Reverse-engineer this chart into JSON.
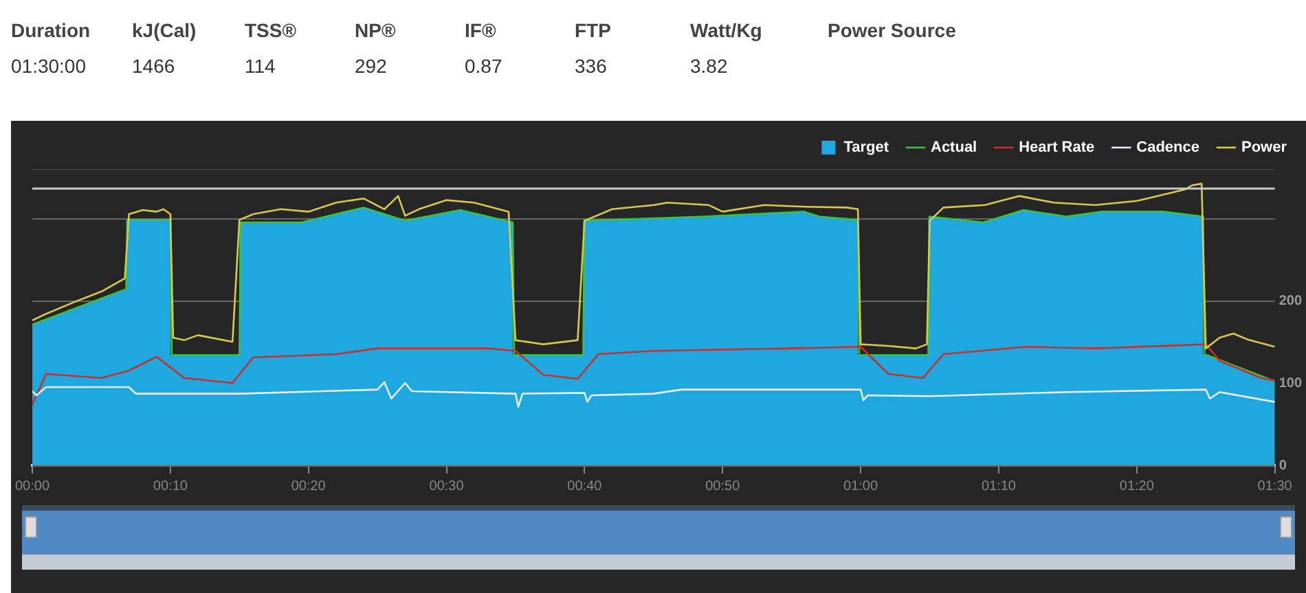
{
  "chart_data": {
    "type": "area",
    "annotations": [
      "Duration",
      "01:30:00",
      "kJ(Cal)",
      "1466",
      "TSS®",
      "114",
      "NP®",
      "292",
      "IF®",
      "0.87",
      "FTP",
      "336",
      "Watt/Kg",
      "3.82",
      "Power Source"
    ],
    "series": [
      {
        "name": "Target",
        "type": "area",
        "color": "#1fa8e0",
        "x": [
          0,
          6.8,
          6.8,
          10,
          10,
          15,
          15,
          19.5,
          24,
          27,
          31,
          34.8,
          34.8,
          39.9,
          39.9,
          48.6,
          55.9,
          57,
          59.8,
          59.8,
          64.9,
          64.9,
          68.9,
          71.8,
          74.9,
          77.5,
          81.9,
          84.8,
          84.8,
          90
        ],
        "values": [
          171,
          214,
          298,
          298,
          134,
          134,
          295,
          295,
          313,
          297,
          310,
          295,
          134,
          134,
          297,
          302,
          308,
          302,
          298,
          134,
          134,
          302,
          295,
          310,
          302,
          308,
          308,
          302,
          135,
          102
        ]
      },
      {
        "name": "Actual",
        "type": "line",
        "color": "#3fbf3f",
        "x": [
          0,
          6.8,
          6.9,
          10,
          10.1,
          15,
          15.1,
          19.5,
          24,
          27,
          31,
          34.8,
          34.9,
          39.9,
          40,
          48.6,
          55.9,
          57,
          59.8,
          59.9,
          64.9,
          65,
          68.9,
          71.8,
          74.9,
          77.5,
          81.9,
          84.8,
          84.9,
          90
        ],
        "values": [
          171,
          214,
          298,
          298,
          134,
          134,
          295,
          295,
          313,
          297,
          310,
          295,
          134,
          134,
          297,
          302,
          308,
          302,
          298,
          134,
          134,
          302,
          295,
          310,
          302,
          308,
          308,
          302,
          135,
          102
        ]
      },
      {
        "name": "Heart Rate",
        "type": "line",
        "color": "#c8302c",
        "x": [
          0,
          1,
          5,
          7,
          9,
          11,
          14.5,
          16,
          22,
          25,
          33,
          35,
          37,
          39.5,
          41,
          45,
          55,
          60,
          62,
          64.5,
          66,
          72,
          77,
          85,
          86,
          89,
          90
        ],
        "values": [
          74,
          111,
          106,
          115,
          132,
          106,
          100,
          131,
          135,
          142,
          142,
          139,
          110,
          105,
          135,
          139,
          142,
          144,
          111,
          106,
          135,
          144,
          142,
          147,
          127,
          106,
          103
        ]
      },
      {
        "name": "Cadence",
        "type": "line",
        "color": "#e8eef2",
        "x": [
          0,
          0.3,
          1,
          7,
          7.5,
          15,
          25,
          25.5,
          26,
          27,
          27.5,
          35,
          35.2,
          35.5,
          40,
          40.2,
          40.5,
          45,
          47,
          60,
          60.2,
          60.5,
          65,
          75,
          85,
          85.3,
          86,
          90
        ],
        "values": [
          90,
          85,
          95,
          95,
          87,
          87,
          92,
          101,
          81,
          100,
          90,
          87,
          71,
          87,
          88,
          77,
          85,
          87,
          92,
          92,
          79,
          85,
          84,
          89,
          92,
          81,
          89,
          77
        ]
      },
      {
        "name": "Power",
        "type": "line",
        "color": "#d9c94a",
        "x": [
          0,
          1,
          3,
          5,
          6.7,
          7,
          8,
          9,
          9.5,
          10,
          10.2,
          11,
          12,
          14.5,
          15,
          16,
          18,
          20,
          22,
          24,
          25.5,
          26.5,
          27,
          28,
          30,
          32,
          34.5,
          35,
          37,
          39.5,
          40,
          42,
          45,
          46,
          49,
          50,
          53,
          56,
          59,
          59.8,
          60,
          62,
          64,
          64.8,
          65,
          66,
          69,
          71.5,
          74,
          77,
          80,
          82,
          83.5,
          84,
          84.7,
          85,
          86,
          87,
          88,
          90
        ],
        "values": [
          176,
          184,
          198,
          211,
          227,
          305,
          310,
          308,
          311,
          305,
          155,
          152,
          158,
          150,
          298,
          305,
          311,
          308,
          319,
          324,
          311,
          327,
          303,
          311,
          322,
          319,
          308,
          152,
          147,
          152,
          297,
          311,
          316,
          319,
          316,
          308,
          316,
          314,
          313,
          311,
          147,
          145,
          142,
          147,
          297,
          313,
          316,
          327,
          319,
          316,
          321,
          329,
          335,
          340,
          342,
          142,
          155,
          160,
          153,
          144
        ]
      }
    ],
    "xlim": [
      0,
      90
    ],
    "xticks": [
      {
        "value": 0,
        "label": "00:00"
      },
      {
        "value": 10,
        "label": "00:10"
      },
      {
        "value": 20,
        "label": "00:20"
      },
      {
        "value": 30,
        "label": "00:30"
      },
      {
        "value": 40,
        "label": "00:40"
      },
      {
        "value": 50,
        "label": "00:50"
      },
      {
        "value": 60,
        "label": "01:00"
      },
      {
        "value": 70,
        "label": "01:10"
      },
      {
        "value": 80,
        "label": "01:20"
      },
      {
        "value": 90,
        "label": "01:30"
      }
    ],
    "ylim": [
      0,
      360
    ],
    "yticks": [
      0,
      100,
      200,
      {
        "value": 300,
        "label": null
      }
    ],
    "ref_lines": [
      {
        "axis": "y",
        "value": 336,
        "color": "#c8c8c8"
      }
    ],
    "grid": "y",
    "legend": "top right"
  }
}
